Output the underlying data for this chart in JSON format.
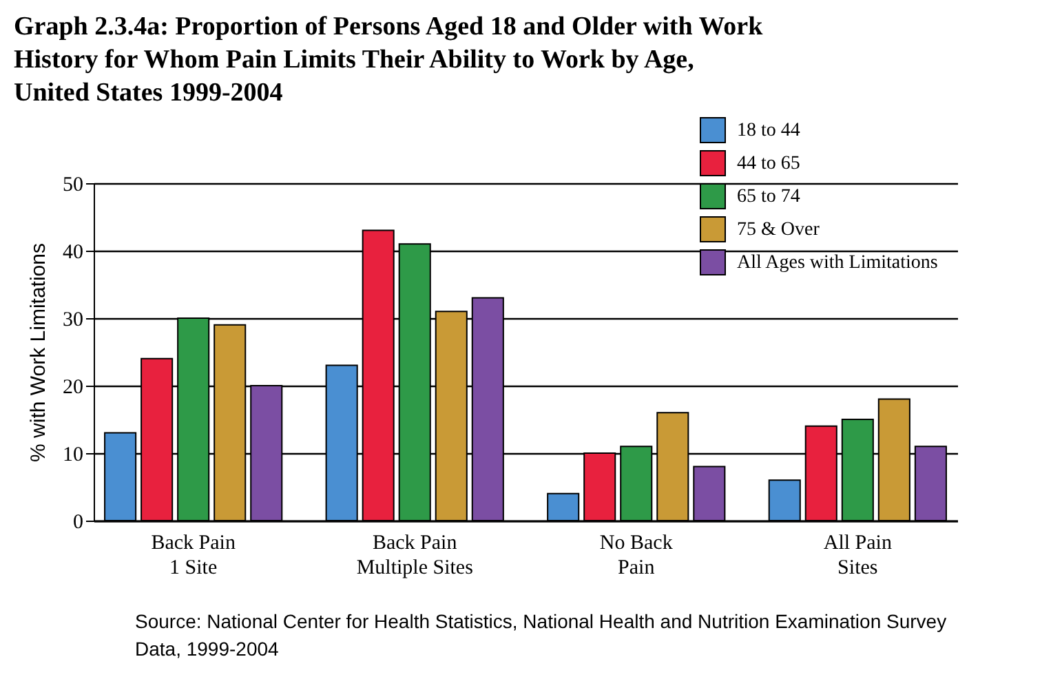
{
  "chart_data": {
    "type": "bar",
    "title": "Graph 2.3.4a: Proportion of Persons Aged 18 and Older with Work History for Whom Pain Limits Their Ability to Work by Age, United States 1999-2004",
    "ylabel": "% with Work Limitations",
    "categories": [
      "Back Pain 1 Site",
      "Back Pain Multiple Sites",
      "No Back Pain",
      "All Pain Sites"
    ],
    "series": [
      {
        "name": "18 to 44",
        "color": "#4a8fd2",
        "values": [
          13,
          23,
          4,
          6
        ]
      },
      {
        "name": "44 to 65",
        "color": "#e8213e",
        "values": [
          24,
          43,
          10,
          14
        ]
      },
      {
        "name": "65 to 74",
        "color": "#2e9a48",
        "values": [
          30,
          41,
          11,
          15
        ]
      },
      {
        "name": "75 & Over",
        "color": "#c99a36",
        "values": [
          29,
          31,
          16,
          18
        ]
      },
      {
        "name": "All Ages with Limitations",
        "color": "#7b4ea3",
        "values": [
          20,
          33,
          8,
          11
        ]
      }
    ],
    "ylim": [
      0,
      50
    ],
    "yticks": [
      0,
      10,
      20,
      30,
      40,
      50
    ],
    "grid": "y",
    "legend": "top right",
    "annotations": [
      "Source: National Center for Health Statistics, National Health and Nutrition Examination Survey Data, 1999-2004"
    ]
  }
}
